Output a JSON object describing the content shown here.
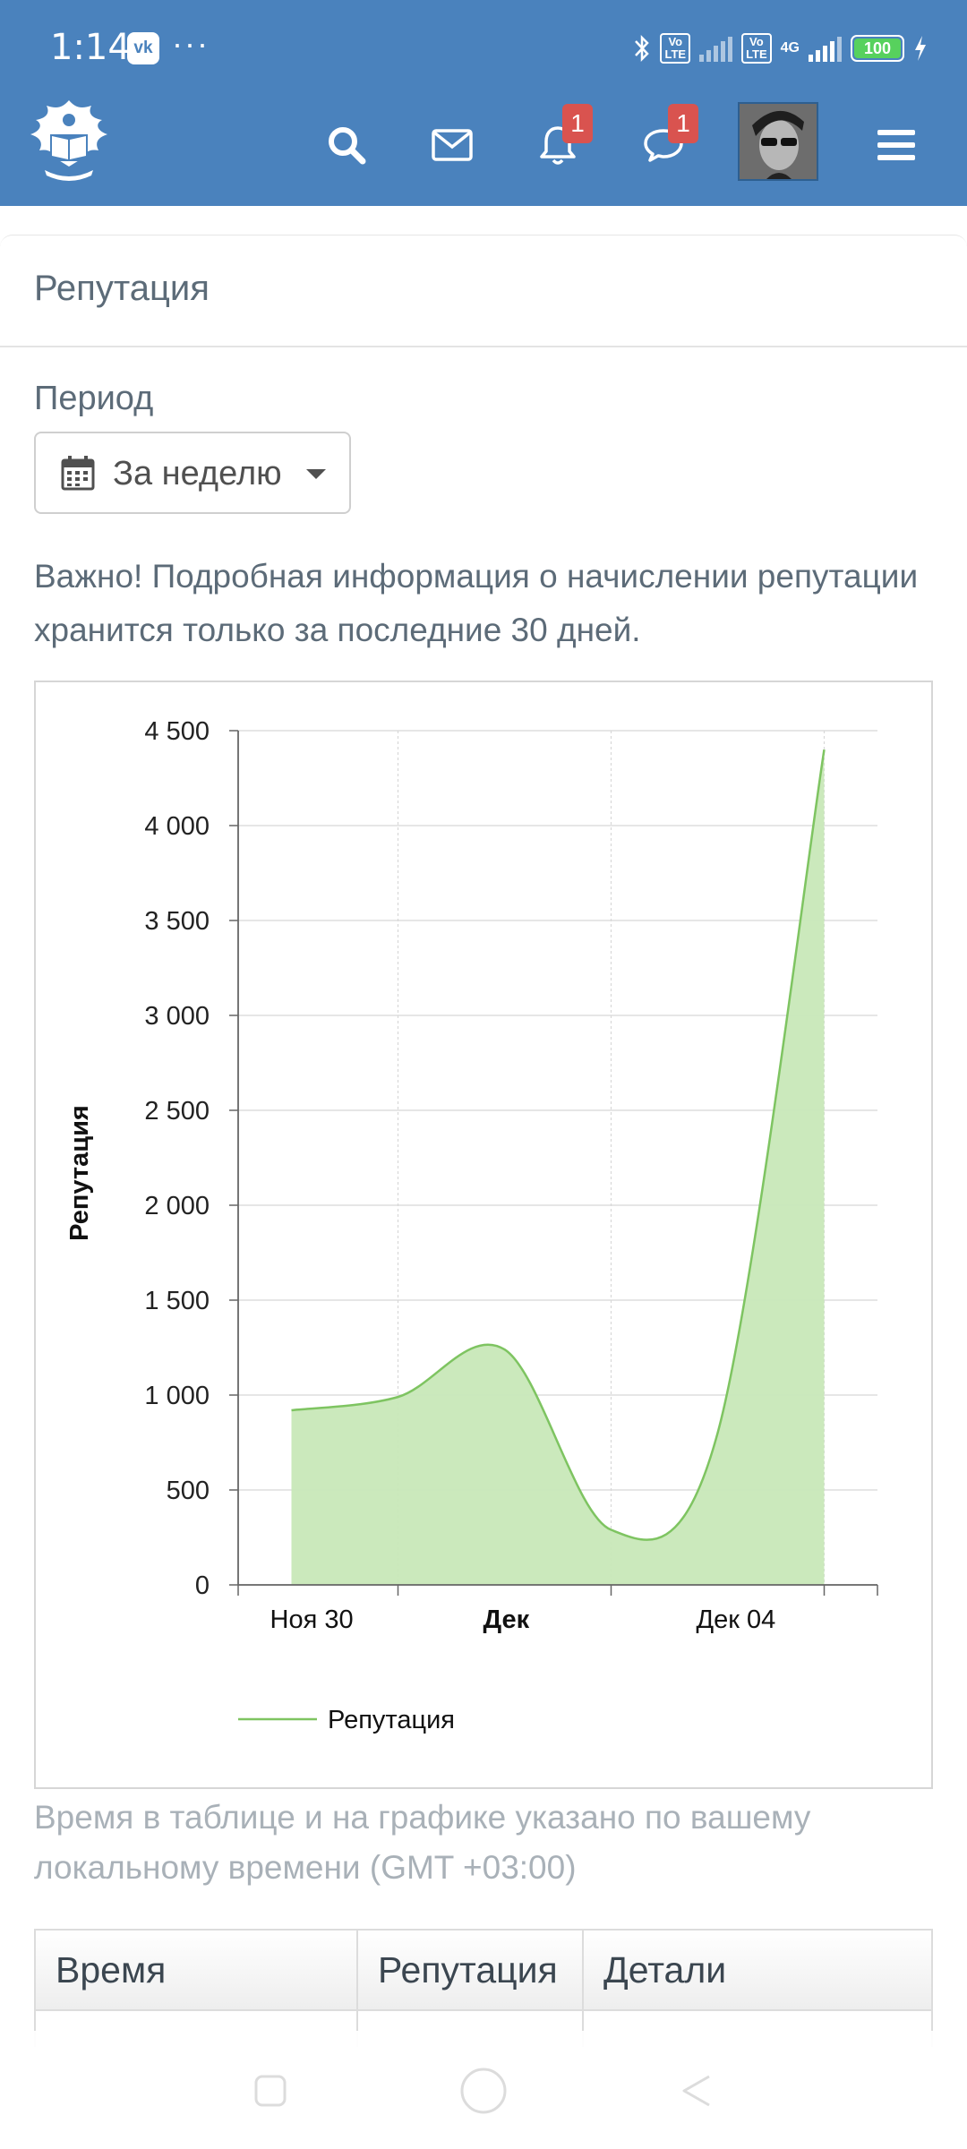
{
  "status_bar": {
    "time": "1:14",
    "vk_badge": "vk",
    "more_dots": "···",
    "lte_1": "Vo\nLTE",
    "lte_2": "Vo\nLTE",
    "network": "4G",
    "battery": "100"
  },
  "header": {
    "notifications_count": "1",
    "messages_count": "1"
  },
  "page": {
    "title": "Репутация",
    "period_label": "Период",
    "period_value": "За неделю",
    "notice": "Важно! Подробная информация о начислении репутации хранится только за последние 30 дней.",
    "timezone_note": "Время в таблице и на графике указано по вашему локальному времени (GMT +03:00)"
  },
  "table": {
    "headers": [
      "Время",
      "Репутация",
      "Детали"
    ]
  },
  "colors": {
    "header_blue": "#4a82bd",
    "series_line": "#7ec461",
    "series_fill": "#c8e8b8",
    "badge_red": "#d9534f"
  },
  "chart_data": {
    "type": "area",
    "title": "",
    "xlabel": "",
    "ylabel": "Репутация",
    "ylim": [
      0,
      4500
    ],
    "yticks": [
      0,
      500,
      1000,
      1500,
      2000,
      2500,
      3000,
      3500,
      4000,
      4500
    ],
    "ytick_labels": [
      "0",
      "500",
      "1 000",
      "1 500",
      "2 000",
      "2 500",
      "3 000",
      "3 500",
      "4 000",
      "4 500"
    ],
    "xtick_labels": [
      "Ноя 30",
      "Дек",
      "Дек 04"
    ],
    "xtick_values": [
      0,
      2,
      4
    ],
    "xlim": [
      -0.5,
      5.5
    ],
    "x": [
      0,
      1,
      2,
      3,
      4,
      5
    ],
    "series": [
      {
        "name": "Репутация",
        "values": [
          920,
          990,
          1240,
          290,
          800,
          4400
        ]
      }
    ],
    "legend": "bottom",
    "grid": true
  }
}
